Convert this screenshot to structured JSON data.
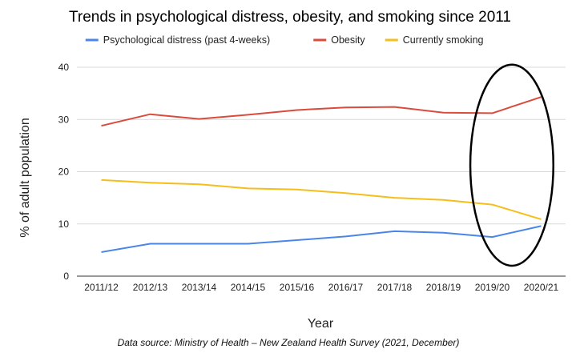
{
  "chart_data": {
    "type": "line",
    "title": "Trends in psychological distress, obesity, and smoking since 2011",
    "xlabel": "Year",
    "ylabel": "% of adult population",
    "categories": [
      "2011/12",
      "2012/13",
      "2013/14",
      "2014/15",
      "2015/16",
      "2016/17",
      "2017/18",
      "2018/19",
      "2019/20",
      "2020/21"
    ],
    "ylim": [
      0,
      40
    ],
    "yticks": [
      "0",
      "10",
      "20",
      "30",
      "40"
    ],
    "grid": true,
    "legend_position": "top",
    "series": [
      {
        "name": "Psychological distress (past 4-weeks)",
        "color": "#4a86e8",
        "values": [
          4.6,
          6.2,
          6.2,
          6.2,
          6.9,
          7.6,
          8.6,
          8.3,
          7.5,
          9.6
        ]
      },
      {
        "name": "Obesity",
        "color": "#db4b3c",
        "values": [
          28.8,
          31.0,
          30.1,
          30.9,
          31.8,
          32.3,
          32.4,
          31.3,
          31.2,
          34.3
        ]
      },
      {
        "name": "Currently smoking",
        "color": "#f4be1b",
        "values": [
          18.4,
          17.9,
          17.6,
          16.8,
          16.6,
          15.9,
          15.0,
          14.6,
          13.7,
          10.9
        ]
      }
    ],
    "annotations": [
      {
        "type": "ellipse",
        "color": "#000000",
        "category_range": [
          "2019/20",
          "2020/21"
        ],
        "y_range": [
          2,
          40.5
        ]
      }
    ],
    "source": "Data source: Ministry of Health – New Zealand Health Survey (2021, December)"
  }
}
